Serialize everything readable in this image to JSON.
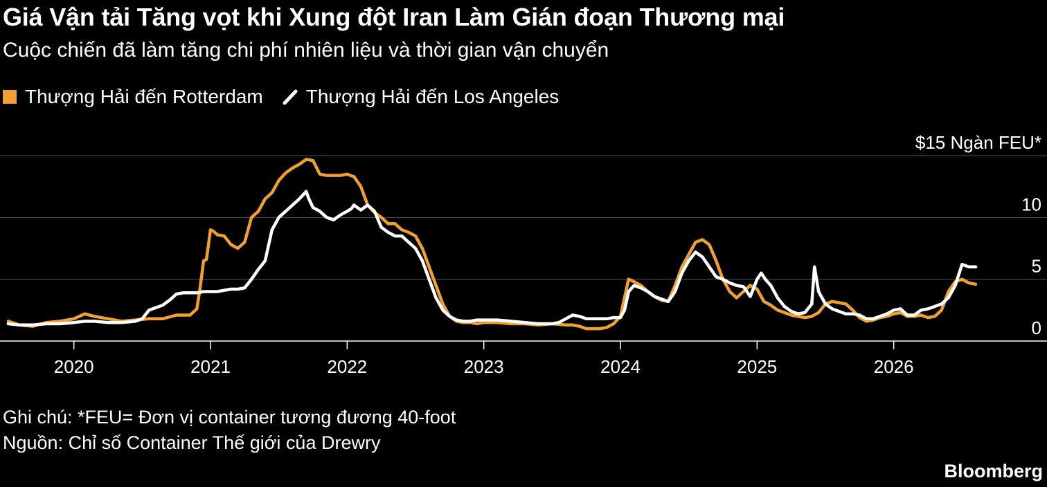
{
  "header": {
    "title": "Giá Vận tải Tăng vọt khi Xung đột Iran Làm Gián đoạn Thương mại",
    "subtitle": "Cuộc chiến đã làm tăng chi phí nhiên liệu và thời gian vận chuyển"
  },
  "legend": [
    {
      "label": "Thượng Hải đến Rotterdam",
      "color": "#f0a033",
      "icon": "square-swatch"
    },
    {
      "label": "Thượng Hải đến Los Angeles",
      "color": "#ffffff",
      "icon": "slash-swatch"
    }
  ],
  "footer": {
    "note": "Ghi chú: *FEU= Đơn vị container tương đương 40-foot",
    "source": "Nguồn: Chỉ số Container Thế giới của Drewry",
    "brand": "Bloomberg"
  },
  "chart_data": {
    "type": "line",
    "ylim": [
      0,
      15
    ],
    "y_ticks": [
      {
        "value": 15,
        "label": "$15 Ngàn FEU*"
      },
      {
        "value": 10,
        "label": "10"
      },
      {
        "value": 5,
        "label": "5"
      },
      {
        "value": 0,
        "label": "0"
      }
    ],
    "x_ticks": [
      {
        "value": 2020,
        "label": "2020"
      },
      {
        "value": 2021,
        "label": "2021"
      },
      {
        "value": 2022,
        "label": "2022"
      },
      {
        "value": 2023,
        "label": "2023"
      },
      {
        "value": 2024,
        "label": "2024"
      },
      {
        "value": 2025,
        "label": "2025"
      },
      {
        "value": 2026,
        "label": "2026"
      }
    ],
    "xlim": [
      2019.5,
      2027.0
    ],
    "grid": "horizontal",
    "series": [
      {
        "name": "Thượng Hải đến Rotterdam",
        "color": "#f0a033",
        "x": [
          2019.52,
          2019.6,
          2019.7,
          2019.8,
          2019.9,
          2020.0,
          2020.08,
          2020.15,
          2020.25,
          2020.35,
          2020.45,
          2020.55,
          2020.65,
          2020.75,
          2020.85,
          2020.9,
          2020.92,
          2020.95,
          2020.97,
          2021.0,
          2021.02,
          2021.05,
          2021.1,
          2021.15,
          2021.2,
          2021.25,
          2021.3,
          2021.35,
          2021.4,
          2021.45,
          2021.5,
          2021.55,
          2021.6,
          2021.65,
          2021.7,
          2021.75,
          2021.8,
          2021.85,
          2021.9,
          2021.95,
          2022.0,
          2022.05,
          2022.1,
          2022.15,
          2022.2,
          2022.25,
          2022.3,
          2022.35,
          2022.4,
          2022.45,
          2022.5,
          2022.55,
          2022.6,
          2022.65,
          2022.7,
          2022.75,
          2022.8,
          2022.85,
          2022.9,
          2022.95,
          2023.0,
          2023.1,
          2023.2,
          2023.3,
          2023.4,
          2023.5,
          2023.6,
          2023.65,
          2023.7,
          2023.75,
          2023.8,
          2023.85,
          2023.9,
          2023.95,
          2024.0,
          2024.03,
          2024.06,
          2024.1,
          2024.15,
          2024.2,
          2024.25,
          2024.3,
          2024.35,
          2024.4,
          2024.45,
          2024.5,
          2024.55,
          2024.6,
          2024.65,
          2024.7,
          2024.75,
          2024.8,
          2024.85,
          2024.9,
          2024.95,
          2025.0,
          2025.05,
          2025.1,
          2025.15,
          2025.2,
          2025.25,
          2025.3,
          2025.35,
          2025.4,
          2025.45,
          2025.5,
          2025.55,
          2025.6,
          2025.65,
          2025.7,
          2025.75,
          2025.8,
          2025.85,
          2025.9,
          2025.95,
          2026.0,
          2026.05,
          2026.1,
          2026.15,
          2026.2,
          2026.25,
          2026.3,
          2026.35,
          2026.4,
          2026.45,
          2026.5,
          2026.55,
          2026.6
        ],
        "y": [
          1.6,
          1.3,
          1.2,
          1.5,
          1.6,
          1.8,
          2.2,
          2.0,
          1.8,
          1.6,
          1.7,
          1.8,
          1.8,
          2.1,
          2.1,
          2.6,
          4.0,
          6.5,
          6.6,
          9.0,
          8.9,
          8.6,
          8.5,
          7.8,
          7.5,
          8.0,
          10.0,
          10.5,
          11.5,
          12.0,
          13.0,
          13.6,
          14.0,
          14.3,
          14.7,
          14.6,
          13.5,
          13.4,
          13.4,
          13.4,
          13.5,
          13.3,
          12.5,
          11.0,
          10.4,
          10.0,
          9.5,
          9.5,
          9.0,
          8.8,
          8.5,
          7.5,
          6.0,
          4.5,
          3.0,
          2.0,
          1.6,
          1.5,
          1.5,
          1.4,
          1.5,
          1.5,
          1.4,
          1.4,
          1.3,
          1.4,
          1.3,
          1.3,
          1.2,
          1.0,
          1.0,
          1.0,
          1.1,
          1.4,
          2.0,
          3.5,
          5.0,
          4.8,
          4.5,
          4.0,
          3.6,
          3.3,
          3.2,
          4.5,
          6.0,
          7.0,
          8.0,
          8.2,
          7.8,
          6.5,
          5.0,
          4.0,
          3.5,
          4.0,
          4.5,
          4.2,
          3.2,
          2.9,
          2.5,
          2.3,
          2.1,
          2.0,
          1.9,
          2.0,
          2.3,
          3.0,
          3.2,
          3.1,
          3.0,
          2.5,
          1.9,
          1.6,
          1.7,
          1.9,
          2.0,
          2.2,
          2.3,
          2.0,
          2.0,
          2.1,
          1.9,
          2.0,
          2.5,
          4.0,
          4.8,
          5.0,
          4.7,
          4.6
        ]
      },
      {
        "name": "Thượng Hải đến Los Angeles",
        "color": "#ffffff",
        "x": [
          2019.52,
          2019.6,
          2019.7,
          2019.8,
          2019.9,
          2020.0,
          2020.08,
          2020.15,
          2020.25,
          2020.35,
          2020.45,
          2020.5,
          2020.55,
          2020.6,
          2020.65,
          2020.7,
          2020.75,
          2020.8,
          2020.85,
          2020.9,
          2020.95,
          2021.0,
          2021.05,
          2021.1,
          2021.15,
          2021.2,
          2021.25,
          2021.3,
          2021.35,
          2021.4,
          2021.45,
          2021.5,
          2021.55,
          2021.6,
          2021.65,
          2021.7,
          2021.72,
          2021.75,
          2021.8,
          2021.85,
          2021.9,
          2021.95,
          2022.0,
          2022.03,
          2022.05,
          2022.1,
          2022.15,
          2022.2,
          2022.25,
          2022.3,
          2022.35,
          2022.4,
          2022.45,
          2022.5,
          2022.55,
          2022.6,
          2022.65,
          2022.7,
          2022.75,
          2022.8,
          2022.85,
          2022.9,
          2022.95,
          2023.0,
          2023.1,
          2023.2,
          2023.3,
          2023.4,
          2023.5,
          2023.55,
          2023.6,
          2023.65,
          2023.7,
          2023.75,
          2023.8,
          2023.85,
          2023.9,
          2023.95,
          2024.0,
          2024.03,
          2024.06,
          2024.1,
          2024.15,
          2024.2,
          2024.25,
          2024.3,
          2024.35,
          2024.4,
          2024.45,
          2024.5,
          2024.55,
          2024.6,
          2024.65,
          2024.7,
          2024.75,
          2024.8,
          2024.85,
          2024.9,
          2024.95,
          2025.0,
          2025.03,
          2025.06,
          2025.1,
          2025.15,
          2025.2,
          2025.25,
          2025.3,
          2025.35,
          2025.4,
          2025.42,
          2025.45,
          2025.5,
          2025.55,
          2025.6,
          2025.65,
          2025.7,
          2025.75,
          2025.8,
          2025.85,
          2025.9,
          2025.95,
          2026.0,
          2026.05,
          2026.1,
          2026.15,
          2026.2,
          2026.25,
          2026.3,
          2026.35,
          2026.4,
          2026.45,
          2026.5,
          2026.55,
          2026.6
        ],
        "y": [
          1.4,
          1.3,
          1.3,
          1.4,
          1.4,
          1.5,
          1.6,
          1.6,
          1.5,
          1.5,
          1.6,
          1.8,
          2.5,
          2.7,
          2.9,
          3.3,
          3.8,
          3.9,
          3.9,
          3.9,
          4.0,
          4.0,
          4.0,
          4.1,
          4.2,
          4.2,
          4.3,
          5.0,
          5.8,
          6.5,
          9.0,
          10.0,
          10.5,
          11.0,
          11.5,
          12.1,
          11.5,
          10.8,
          10.5,
          10.0,
          9.8,
          10.2,
          10.5,
          10.7,
          11.0,
          10.6,
          11.0,
          10.5,
          9.2,
          8.8,
          8.5,
          8.5,
          8.0,
          7.5,
          6.5,
          5.0,
          3.5,
          2.5,
          2.0,
          1.7,
          1.6,
          1.6,
          1.7,
          1.7,
          1.7,
          1.6,
          1.5,
          1.4,
          1.4,
          1.5,
          1.8,
          2.1,
          2.0,
          1.8,
          1.8,
          1.8,
          1.8,
          1.9,
          1.9,
          2.5,
          4.0,
          4.5,
          4.3,
          4.0,
          3.6,
          3.4,
          3.2,
          4.0,
          5.5,
          6.5,
          7.2,
          6.8,
          6.0,
          5.2,
          5.0,
          4.7,
          4.5,
          4.4,
          3.6,
          5.0,
          5.5,
          5.0,
          4.5,
          3.5,
          2.8,
          2.4,
          2.2,
          2.3,
          3.0,
          6.0,
          4.0,
          3.0,
          2.6,
          2.4,
          2.2,
          2.2,
          2.1,
          1.8,
          1.8,
          2.0,
          2.2,
          2.5,
          2.6,
          2.1,
          2.1,
          2.5,
          2.6,
          2.8,
          3.0,
          3.5,
          4.5,
          6.2,
          6.0,
          6.0
        ]
      }
    ]
  }
}
